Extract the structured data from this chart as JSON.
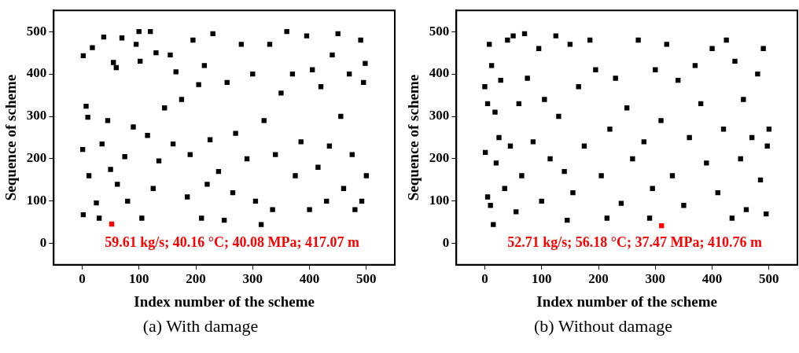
{
  "chart_data": [
    {
      "type": "scatter",
      "title": "(a)  With damage",
      "xlabel": "Index number of the scheme",
      "ylabel": "Sequence of scheme",
      "xlim": [
        -50,
        550
      ],
      "ylim": [
        -50,
        550
      ],
      "xticks": [
        0,
        100,
        200,
        300,
        400,
        500
      ],
      "yticks": [
        0,
        100,
        200,
        300,
        400,
        500
      ],
      "grid": false,
      "legend": false,
      "marker": "square",
      "annotations": [
        "59.61 kg/s; 40.16 °C; 40.08 MPa; 417.07 m"
      ],
      "series": [
        {
          "color": "#000000",
          "x": [
            2,
            1,
            2,
            7,
            10,
            18,
            12,
            25,
            30,
            35,
            38,
            45,
            50,
            55,
            60,
            62,
            70,
            75,
            80,
            90,
            95,
            100,
            102,
            105,
            115,
            120,
            125,
            130,
            135,
            145,
            155,
            160,
            165,
            175,
            185,
            190,
            195,
            205,
            210,
            215,
            220,
            225,
            230,
            240,
            250,
            255,
            265,
            270,
            280,
            290,
            300,
            305,
            315,
            320,
            330,
            335,
            340,
            350,
            360,
            370,
            375,
            385,
            395,
            400,
            405,
            415,
            420,
            430,
            435,
            440,
            450,
            455,
            460,
            470,
            475,
            480,
            490,
            495,
            500,
            498,
            492
          ],
          "values": [
            68,
            222,
            443,
            324,
            298,
            462,
            160,
            96,
            60,
            235,
            487,
            290,
            175,
            427,
            415,
            140,
            485,
            205,
            100,
            275,
            470,
            500,
            430,
            60,
            255,
            500,
            130,
            450,
            195,
            320,
            445,
            235,
            405,
            340,
            110,
            210,
            480,
            375,
            60,
            420,
            140,
            245,
            495,
            170,
            55,
            380,
            120,
            260,
            470,
            200,
            400,
            100,
            45,
            290,
            470,
            80,
            210,
            355,
            500,
            400,
            160,
            240,
            490,
            80,
            410,
            180,
            370,
            100,
            230,
            445,
            495,
            300,
            130,
            400,
            210,
            80,
            480,
            380,
            160,
            425,
            100
          ]
        },
        {
          "color": "#ff0000",
          "x": [
            52
          ],
          "values": [
            46
          ]
        }
      ]
    },
    {
      "type": "scatter",
      "title": "(b)  Without damage",
      "xlabel": "Index number of the scheme",
      "ylabel": "Sequence of scheme",
      "xlim": [
        -50,
        550
      ],
      "ylim": [
        -50,
        550
      ],
      "xticks": [
        0,
        100,
        200,
        300,
        400,
        500
      ],
      "yticks": [
        0,
        100,
        200,
        300,
        400,
        500
      ],
      "grid": false,
      "legend": false,
      "marker": "square",
      "annotations": [
        "52.71 kg/s; 56.18 °C; 37.47 MPa; 410.76 m"
      ],
      "series": [
        {
          "color": "#000000",
          "x": [
            0,
            1,
            5,
            8,
            5,
            10,
            12,
            15,
            18,
            20,
            25,
            28,
            35,
            40,
            45,
            50,
            55,
            60,
            65,
            70,
            75,
            85,
            95,
            100,
            105,
            115,
            125,
            130,
            140,
            145,
            150,
            155,
            165,
            175,
            185,
            195,
            205,
            215,
            220,
            230,
            240,
            250,
            260,
            270,
            280,
            290,
            295,
            300,
            310,
            320,
            330,
            340,
            350,
            360,
            370,
            380,
            390,
            400,
            410,
            420,
            425,
            435,
            440,
            450,
            455,
            460,
            470,
            480,
            485,
            490,
            495,
            500,
            497
          ],
          "values": [
            370,
            215,
            330,
            470,
            110,
            90,
            420,
            45,
            310,
            190,
            250,
            385,
            130,
            480,
            230,
            490,
            75,
            330,
            160,
            495,
            390,
            240,
            460,
            100,
            340,
            200,
            490,
            300,
            170,
            55,
            470,
            120,
            370,
            230,
            480,
            410,
            160,
            60,
            270,
            390,
            95,
            320,
            200,
            480,
            240,
            60,
            130,
            410,
            290,
            470,
            160,
            385,
            90,
            250,
            420,
            330,
            190,
            460,
            120,
            270,
            480,
            60,
            430,
            200,
            340,
            80,
            250,
            400,
            150,
            460,
            70,
            270,
            230
          ]
        },
        {
          "color": "#ff0000",
          "x": [
            311
          ],
          "values": [
            42
          ]
        }
      ]
    }
  ]
}
